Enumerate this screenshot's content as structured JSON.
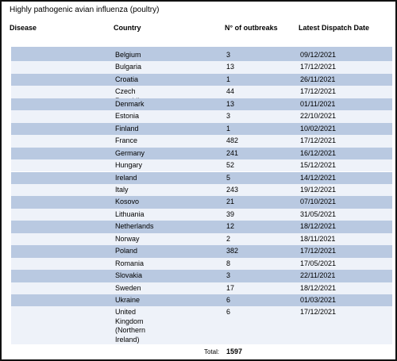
{
  "header": {
    "title": "Highly pathogenic avian influenza (poultry)"
  },
  "table": {
    "columns": [
      "Disease",
      "Country",
      "N° of outbreaks",
      "Latest Dispatch Date"
    ],
    "rows": [
      {
        "country": "Belgium",
        "outbreaks": 3,
        "date": "09/12/2021"
      },
      {
        "country": "Bulgaria",
        "outbreaks": 13,
        "date": "17/12/2021"
      },
      {
        "country": "Croatia",
        "outbreaks": 1,
        "date": "26/11/2021"
      },
      {
        "country": "Czech Republic",
        "outbreaks": 44,
        "date": "17/12/2021"
      },
      {
        "country": "Denmark",
        "outbreaks": 13,
        "date": "01/11/2021"
      },
      {
        "country": "Estonia",
        "outbreaks": 3,
        "date": "22/10/2021"
      },
      {
        "country": "Finland",
        "outbreaks": 1,
        "date": "10/02/2021"
      },
      {
        "country": "France",
        "outbreaks": 482,
        "date": "17/12/2021"
      },
      {
        "country": "Germany",
        "outbreaks": 241,
        "date": "16/12/2021"
      },
      {
        "country": "Hungary",
        "outbreaks": 52,
        "date": "15/12/2021"
      },
      {
        "country": "Ireland",
        "outbreaks": 5,
        "date": "14/12/2021"
      },
      {
        "country": "Italy",
        "outbreaks": 243,
        "date": "19/12/2021"
      },
      {
        "country": "Kosovo",
        "outbreaks": 21,
        "date": "07/10/2021"
      },
      {
        "country": "Lithuania",
        "outbreaks": 39,
        "date": "31/05/2021"
      },
      {
        "country": "Netherlands",
        "outbreaks": 12,
        "date": "18/12/2021"
      },
      {
        "country": "Norway",
        "outbreaks": 2,
        "date": "18/11/2021"
      },
      {
        "country": "Poland",
        "outbreaks": 382,
        "date": "17/12/2021"
      },
      {
        "country": "Romania",
        "outbreaks": 8,
        "date": "17/05/2021"
      },
      {
        "country": "Slovakia",
        "outbreaks": 3,
        "date": "22/11/2021"
      },
      {
        "country": "Sweden",
        "outbreaks": 17,
        "date": "18/12/2021"
      },
      {
        "country": "Ukraine",
        "outbreaks": 6,
        "date": "01/03/2021"
      },
      {
        "country": "United Kingdom (Northern Ireland)",
        "outbreaks": 6,
        "date": "17/12/2021"
      }
    ],
    "total": {
      "label": "Total:",
      "value": 1597
    }
  }
}
